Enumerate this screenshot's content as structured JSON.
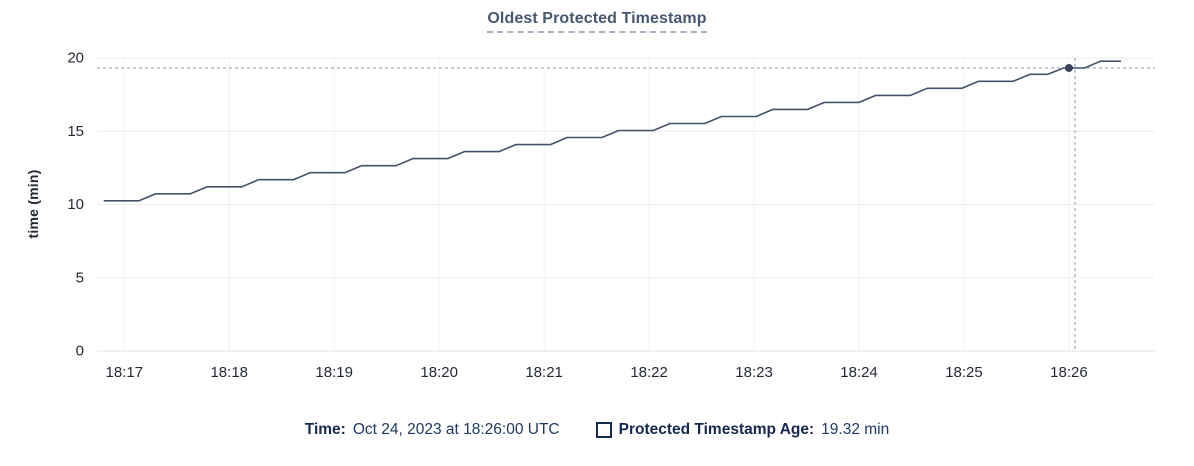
{
  "title": "Oldest Protected Timestamp",
  "y_axis_label": "time (min)",
  "footer": {
    "time_label": "Time:",
    "time_value": "Oct 24, 2023 at 18:26:00 UTC",
    "series_label": "Protected Timestamp Age:",
    "series_value": "19.32 min",
    "legend_checkbox_icon": "empty-square-icon"
  },
  "colors": {
    "title": "#475872",
    "line": "#44516a",
    "dot": "#394455",
    "crosshair": "#96aebb",
    "grid_h": "#ededed",
    "grid_v": "#f3f3f3",
    "axis_line": "#e0e0e0",
    "tick_label": "#242a35"
  },
  "chart_data": {
    "type": "line",
    "title": "Oldest Protected Timestamp",
    "xlabel": "",
    "ylabel": "time (min)",
    "ylim": [
      0,
      20
    ],
    "y_ticks": [
      0,
      5,
      10,
      15,
      20
    ],
    "x_tick_labels": [
      "18:17",
      "18:18",
      "18:19",
      "18:20",
      "18:21",
      "18:22",
      "18:23",
      "18:24",
      "18:25",
      "18:26"
    ],
    "x_tick_t": [
      0,
      1,
      2,
      3,
      4,
      5,
      6,
      7,
      8,
      9
    ],
    "t_range": [
      -0.26,
      9.82
    ],
    "t_unit": "minutes after 18:17 UTC on Oct 24, 2023",
    "grid": true,
    "legend_position": "bottom",
    "series_name": "Protected Timestamp Age",
    "points": [
      [
        -0.19,
        10.25
      ],
      [
        0.14,
        10.25
      ],
      [
        0.3,
        10.73
      ],
      [
        0.63,
        10.73
      ],
      [
        0.79,
        11.21
      ],
      [
        1.12,
        11.21
      ],
      [
        1.28,
        11.69
      ],
      [
        1.61,
        11.69
      ],
      [
        1.77,
        12.17
      ],
      [
        2.1,
        12.17
      ],
      [
        2.26,
        12.65
      ],
      [
        2.59,
        12.65
      ],
      [
        2.75,
        13.13
      ],
      [
        3.08,
        13.13
      ],
      [
        3.24,
        13.61
      ],
      [
        3.57,
        13.61
      ],
      [
        3.73,
        14.09
      ],
      [
        4.06,
        14.09
      ],
      [
        4.22,
        14.57
      ],
      [
        4.55,
        14.57
      ],
      [
        4.71,
        15.05
      ],
      [
        5.04,
        15.05
      ],
      [
        5.2,
        15.53
      ],
      [
        5.53,
        15.53
      ],
      [
        5.69,
        16.01
      ],
      [
        6.02,
        16.01
      ],
      [
        6.18,
        16.49
      ],
      [
        6.51,
        16.49
      ],
      [
        6.67,
        16.97
      ],
      [
        7.0,
        16.97
      ],
      [
        7.16,
        17.45
      ],
      [
        7.49,
        17.45
      ],
      [
        7.65,
        17.93
      ],
      [
        7.98,
        17.93
      ],
      [
        8.14,
        18.41
      ],
      [
        8.47,
        18.41
      ],
      [
        8.63,
        18.89
      ],
      [
        8.8,
        18.89
      ],
      [
        8.95,
        19.32
      ],
      [
        9.15,
        19.32
      ],
      [
        9.3,
        19.78
      ],
      [
        9.49,
        19.78
      ]
    ],
    "hover_point": {
      "t": 9.0,
      "value": 19.32,
      "time_label": "Oct 24, 2023 at 18:26:00 UTC",
      "value_label": "19.32 min"
    }
  }
}
